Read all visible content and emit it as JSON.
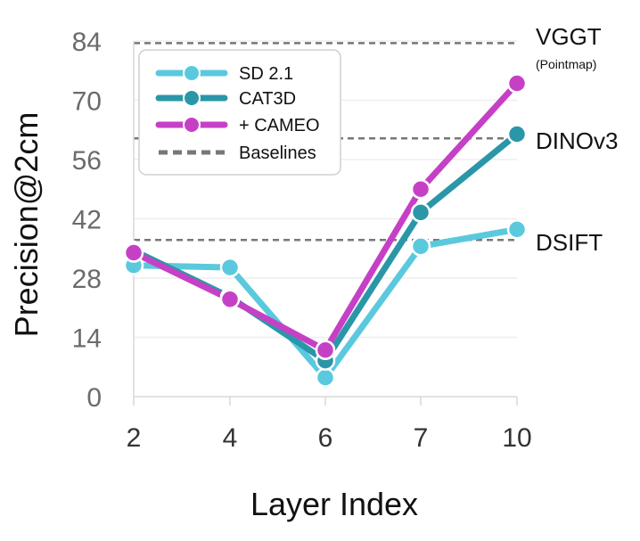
{
  "chart_data": {
    "type": "line",
    "title": "",
    "xlabel": "Layer Index",
    "ylabel": "Precision@2cm",
    "categories": [
      "2",
      "4",
      "6",
      "7",
      "10"
    ],
    "ylim": [
      0,
      84
    ],
    "yticks": [
      0,
      14,
      28,
      42,
      56,
      70,
      84
    ],
    "series": [
      {
        "name": "SD 2.1",
        "color": "#5bc9dd",
        "values": [
          31,
          30.5,
          4.5,
          35.5,
          39.5
        ]
      },
      {
        "name": "CAT3D",
        "color": "#2a97a8",
        "values": [
          34.5,
          23.5,
          8.5,
          43.5,
          62
        ]
      },
      {
        "name": "+ CAMEO",
        "color": "#c640c6",
        "values": [
          34,
          23,
          11,
          49,
          74
        ]
      }
    ],
    "baselines": [
      {
        "name": "VGGT",
        "sublabel": "(Pointmap)",
        "value": 83.5
      },
      {
        "name": "DINOv3",
        "sublabel": "",
        "value": 61
      },
      {
        "name": "DSIFT",
        "sublabel": "",
        "value": 37
      }
    ],
    "baseline_color": "#777777",
    "legend": {
      "position": "top-left",
      "entries": [
        "SD 2.1",
        "CAT3D",
        "+ CAMEO",
        "Baselines"
      ]
    }
  }
}
